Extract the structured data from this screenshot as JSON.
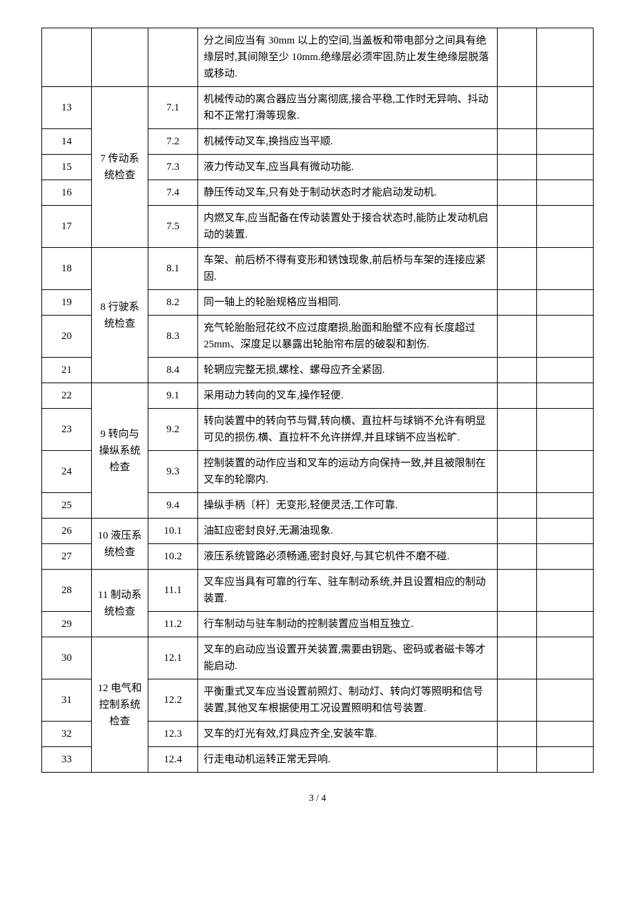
{
  "table": {
    "column_widths": {
      "idx": 55,
      "group": 65,
      "code": 55,
      "blank1": 40,
      "blank2": 65
    },
    "border_color": "#000000",
    "background_color": "#ffffff",
    "font_family": "SimSun",
    "font_size_pt": 11,
    "line_height": 1.6,
    "groups": [
      {
        "label": "",
        "rows": [
          {
            "idx": "",
            "code": "",
            "desc": "分之间应当有 30mm 以上的空间,当盖板和带电部分之间具有绝缘层时,其间隙至少 10mm.绝缘层必须牢固,防止发生绝缘层脱落或移动."
          }
        ]
      },
      {
        "label": "7 传动系统检查",
        "rows": [
          {
            "idx": "13",
            "code": "7.1",
            "desc": "机械传动的离合器应当分离彻底,接合平稳,工作时无异响、抖动和不正常打滑等现象."
          },
          {
            "idx": "14",
            "code": "7.2",
            "desc": "机械传动叉车,换挡应当平顺."
          },
          {
            "idx": "15",
            "code": "7.3",
            "desc": "液力传动叉车,应当具有微动功能."
          },
          {
            "idx": "16",
            "code": "7.4",
            "desc": "静压传动叉车,只有处于制动状态时才能启动发动机."
          },
          {
            "idx": "17",
            "code": "7.5",
            "desc": "内燃叉车,应当配备在传动装置处于接合状态时,能防止发动机启动的装置."
          }
        ]
      },
      {
        "label": "8 行驶系统检查",
        "rows": [
          {
            "idx": "18",
            "code": "8.1",
            "desc": "车架、前后桥不得有变形和锈蚀现象,前后桥与车架的连接应紧固."
          },
          {
            "idx": "19",
            "code": "8.2",
            "desc": "同一轴上的轮胎规格应当相同."
          },
          {
            "idx": "20",
            "code": "8.3",
            "desc": "充气轮胎胎冠花纹不应过度磨损,胎面和胎壁不应有长度超过 25mm、深度足以暴露出轮胎帘布层的破裂和割伤."
          },
          {
            "idx": "21",
            "code": "8.4",
            "desc": "轮辋应完整无损,螺栓、螺母应齐全紧固."
          }
        ]
      },
      {
        "label": "9 转向与操纵系统检查",
        "rows": [
          {
            "idx": "22",
            "code": "9.1",
            "desc": "采用动力转向的叉车,操作轻便."
          },
          {
            "idx": "23",
            "code": "9.2",
            "desc": "转向装置中的转向节与臂,转向横、直拉杆与球销不允许有明显可见的损伤.横、直拉杆不允许拼焊,并且球销不应当松旷."
          },
          {
            "idx": "24",
            "code": "9.3",
            "desc": "控制装置的动作应当和叉车的运动方向保持一致,并且被限制在叉车的轮廓内."
          },
          {
            "idx": "25",
            "code": "9.4",
            "desc": "操纵手柄〔杆〕无变形,轻便灵活,工作可靠."
          }
        ]
      },
      {
        "label": "10 液压系统检查",
        "rows": [
          {
            "idx": "26",
            "code": "10.1",
            "desc": "油缸应密封良好,无漏油现象."
          },
          {
            "idx": "27",
            "code": "10.2",
            "desc": "液压系统管路必须畅通,密封良好,与其它机件不磨不碰."
          }
        ]
      },
      {
        "label": "11 制动系统检查",
        "rows": [
          {
            "idx": "28",
            "code": "11.1",
            "desc": "叉车应当具有可靠的行车、驻车制动系统,并且设置相应的制动装置."
          },
          {
            "idx": "29",
            "code": "11.2",
            "desc": "行车制动与驻车制动的控制装置应当相互独立."
          }
        ]
      },
      {
        "label": "12 电气和控制系统检查",
        "rows": [
          {
            "idx": "30",
            "code": "12.1",
            "desc": "叉车的启动应当设置开关装置,需要由钥匙、密码或者磁卡等才能启动."
          },
          {
            "idx": "31",
            "code": "12.2",
            "desc": "平衡重式叉车应当设置前照灯、制动灯、转向灯等照明和信号装置,其他叉车根据使用工况设置照明和信号装置."
          },
          {
            "idx": "32",
            "code": "12.3",
            "desc": "叉车的灯光有效,灯具应齐全,安装牢靠."
          },
          {
            "idx": "33",
            "code": "12.4",
            "desc": "行走电动机运转正常无异响."
          }
        ]
      }
    ]
  },
  "footer": "3 / 4"
}
